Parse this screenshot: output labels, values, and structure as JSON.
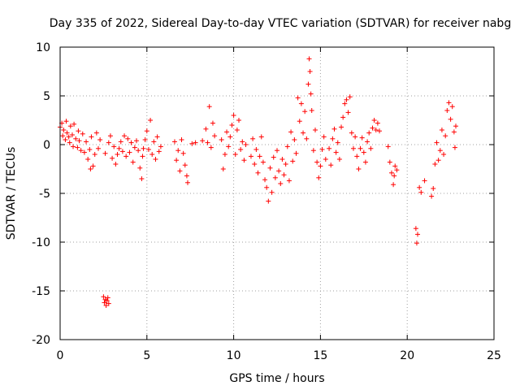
{
  "chart_data": {
    "type": "scatter",
    "title": "Day 335 of 2022, Sidereal Day-to-day VTEC variation (SDTVAR) for receiver nabg",
    "xlabel": "GPS time / hours",
    "ylabel": "SDTVAR / TECUs",
    "xlim": [
      0,
      25
    ],
    "ylim": [
      -20,
      10
    ],
    "xticks": [
      0,
      5,
      10,
      15,
      20,
      25
    ],
    "yticks": [
      -20,
      -15,
      -10,
      -5,
      0,
      5,
      10
    ],
    "grid": true,
    "marker": "+",
    "color": "#ff0000",
    "series": [
      {
        "name": "SDTVAR",
        "points": [
          [
            0.0,
            1.8
          ],
          [
            0.1,
            2.2
          ],
          [
            0.15,
            0.9
          ],
          [
            0.2,
            1.5
          ],
          [
            0.3,
            0.5
          ],
          [
            0.35,
            2.4
          ],
          [
            0.4,
            1.2
          ],
          [
            0.5,
            0.8
          ],
          [
            0.55,
            0.2
          ],
          [
            0.6,
            1.9
          ],
          [
            0.7,
            1.0
          ],
          [
            0.75,
            -0.2
          ],
          [
            0.8,
            2.1
          ],
          [
            0.9,
            0.6
          ],
          [
            1.0,
            -0.3
          ],
          [
            1.05,
            1.4
          ],
          [
            1.1,
            0.4
          ],
          [
            1.2,
            -0.6
          ],
          [
            1.3,
            1.1
          ],
          [
            1.4,
            -0.8
          ],
          [
            1.5,
            0.3
          ],
          [
            1.6,
            -1.5
          ],
          [
            1.7,
            -0.5
          ],
          [
            1.75,
            -2.5
          ],
          [
            1.8,
            0.8
          ],
          [
            1.9,
            -2.2
          ],
          [
            2.0,
            -1.0
          ],
          [
            2.1,
            1.2
          ],
          [
            2.2,
            -0.4
          ],
          [
            2.3,
            0.5
          ],
          [
            2.5,
            -15.6
          ],
          [
            2.55,
            -16.2
          ],
          [
            2.6,
            -15.9
          ],
          [
            2.65,
            -16.5
          ],
          [
            2.7,
            -16.0
          ],
          [
            2.8,
            -16.3
          ],
          [
            2.75,
            -15.7
          ],
          [
            2.6,
            -0.9
          ],
          [
            2.8,
            0.2
          ],
          [
            2.9,
            0.9
          ],
          [
            3.0,
            -1.4
          ],
          [
            3.1,
            -0.2
          ],
          [
            3.2,
            -2.0
          ],
          [
            3.3,
            -1.0
          ],
          [
            3.4,
            -0.4
          ],
          [
            3.5,
            0.3
          ],
          [
            3.6,
            -0.7
          ],
          [
            3.7,
            0.9
          ],
          [
            3.8,
            -1.2
          ],
          [
            3.9,
            0.6
          ],
          [
            4.0,
            -0.8
          ],
          [
            4.1,
            0.2
          ],
          [
            4.2,
            -1.8
          ],
          [
            4.3,
            -0.3
          ],
          [
            4.4,
            0.4
          ],
          [
            4.5,
            -0.6
          ],
          [
            4.6,
            -2.4
          ],
          [
            4.7,
            -3.5
          ],
          [
            4.75,
            -1.2
          ],
          [
            4.8,
            -0.4
          ],
          [
            4.9,
            0.5
          ],
          [
            5.0,
            1.4
          ],
          [
            5.1,
            -0.5
          ],
          [
            5.2,
            2.5
          ],
          [
            5.3,
            -1.0
          ],
          [
            5.4,
            0.3
          ],
          [
            5.5,
            -1.5
          ],
          [
            5.6,
            0.8
          ],
          [
            5.7,
            -0.7
          ],
          [
            5.8,
            -0.2
          ],
          [
            6.6,
            0.3
          ],
          [
            6.7,
            -1.6
          ],
          [
            6.8,
            -0.6
          ],
          [
            6.9,
            -2.7
          ],
          [
            7.0,
            0.5
          ],
          [
            7.1,
            -0.9
          ],
          [
            7.2,
            -2.1
          ],
          [
            7.3,
            -3.2
          ],
          [
            7.35,
            -3.9
          ],
          [
            7.6,
            0.1
          ],
          [
            7.8,
            0.2
          ],
          [
            8.2,
            0.4
          ],
          [
            8.4,
            1.6
          ],
          [
            8.5,
            0.2
          ],
          [
            8.6,
            3.9
          ],
          [
            8.7,
            -0.3
          ],
          [
            8.8,
            2.2
          ],
          [
            8.9,
            0.9
          ],
          [
            9.3,
            0.5
          ],
          [
            9.4,
            -2.5
          ],
          [
            9.5,
            -1.0
          ],
          [
            9.6,
            1.3
          ],
          [
            9.7,
            -0.2
          ],
          [
            9.8,
            0.8
          ],
          [
            9.9,
            2.0
          ],
          [
            10.0,
            3.0
          ],
          [
            10.1,
            -1.0
          ],
          [
            10.2,
            1.5
          ],
          [
            10.3,
            2.5
          ],
          [
            10.4,
            -0.5
          ],
          [
            10.5,
            0.3
          ],
          [
            10.6,
            -1.6
          ],
          [
            10.7,
            0.0
          ],
          [
            11.0,
            -1.2
          ],
          [
            11.1,
            0.6
          ],
          [
            11.2,
            -2.0
          ],
          [
            11.3,
            -0.5
          ],
          [
            11.4,
            -2.9
          ],
          [
            11.5,
            -1.2
          ],
          [
            11.6,
            0.8
          ],
          [
            11.7,
            -1.8
          ],
          [
            11.8,
            -3.6
          ],
          [
            11.9,
            -4.4
          ],
          [
            12.0,
            -5.8
          ],
          [
            12.1,
            -2.4
          ],
          [
            12.2,
            -4.9
          ],
          [
            12.3,
            -1.3
          ],
          [
            12.4,
            -3.4
          ],
          [
            12.5,
            -0.6
          ],
          [
            12.6,
            -2.7
          ],
          [
            12.7,
            -4.0
          ],
          [
            12.8,
            -1.5
          ],
          [
            12.9,
            -3.1
          ],
          [
            13.0,
            -2.0
          ],
          [
            13.1,
            -0.2
          ],
          [
            13.2,
            -3.7
          ],
          [
            13.3,
            1.3
          ],
          [
            13.4,
            -1.7
          ],
          [
            13.5,
            0.5
          ],
          [
            13.6,
            -0.9
          ],
          [
            13.7,
            4.8
          ],
          [
            13.8,
            2.4
          ],
          [
            13.9,
            4.2
          ],
          [
            14.0,
            1.2
          ],
          [
            14.1,
            3.4
          ],
          [
            14.2,
            0.6
          ],
          [
            14.3,
            6.2
          ],
          [
            14.35,
            8.8
          ],
          [
            14.4,
            7.5
          ],
          [
            14.45,
            5.2
          ],
          [
            14.5,
            3.5
          ],
          [
            14.6,
            -0.6
          ],
          [
            14.7,
            1.5
          ],
          [
            14.8,
            -1.8
          ],
          [
            14.9,
            -3.4
          ],
          [
            15.0,
            -2.2
          ],
          [
            15.1,
            -0.5
          ],
          [
            15.2,
            0.8
          ],
          [
            15.3,
            -1.5
          ],
          [
            15.5,
            -0.4
          ],
          [
            15.6,
            -2.1
          ],
          [
            15.7,
            0.6
          ],
          [
            15.8,
            1.6
          ],
          [
            15.9,
            -0.8
          ],
          [
            16.0,
            0.2
          ],
          [
            16.1,
            -1.5
          ],
          [
            16.2,
            1.8
          ],
          [
            16.3,
            2.8
          ],
          [
            16.4,
            4.2
          ],
          [
            16.5,
            4.6
          ],
          [
            16.6,
            3.3
          ],
          [
            16.7,
            4.9
          ],
          [
            16.8,
            1.2
          ],
          [
            16.9,
            -0.4
          ],
          [
            17.0,
            0.8
          ],
          [
            17.1,
            -1.2
          ],
          [
            17.2,
            -2.5
          ],
          [
            17.3,
            -0.4
          ],
          [
            17.4,
            0.7
          ],
          [
            17.5,
            -0.8
          ],
          [
            17.6,
            -1.8
          ],
          [
            17.7,
            0.3
          ],
          [
            17.8,
            1.2
          ],
          [
            17.9,
            -0.4
          ],
          [
            18.0,
            1.7
          ],
          [
            18.1,
            2.5
          ],
          [
            18.2,
            1.5
          ],
          [
            18.3,
            2.2
          ],
          [
            18.4,
            1.4
          ],
          [
            18.9,
            -0.2
          ],
          [
            19.0,
            -1.8
          ],
          [
            19.1,
            -2.9
          ],
          [
            19.2,
            -4.1
          ],
          [
            19.25,
            -3.2
          ],
          [
            19.3,
            -2.2
          ],
          [
            19.4,
            -2.6
          ],
          [
            20.5,
            -8.6
          ],
          [
            20.55,
            -10.1
          ],
          [
            20.6,
            -9.2
          ],
          [
            20.7,
            -4.4
          ],
          [
            20.8,
            -4.9
          ],
          [
            21.0,
            -3.7
          ],
          [
            21.4,
            -5.3
          ],
          [
            21.5,
            -4.5
          ],
          [
            21.6,
            -2.0
          ],
          [
            21.7,
            0.2
          ],
          [
            21.8,
            -1.6
          ],
          [
            21.9,
            -0.6
          ],
          [
            22.0,
            1.5
          ],
          [
            22.1,
            -1.0
          ],
          [
            22.2,
            0.9
          ],
          [
            22.3,
            3.5
          ],
          [
            22.4,
            4.3
          ],
          [
            22.5,
            2.6
          ],
          [
            22.6,
            3.9
          ],
          [
            22.7,
            1.3
          ],
          [
            22.75,
            -0.3
          ],
          [
            22.8,
            1.9
          ]
        ]
      }
    ]
  }
}
